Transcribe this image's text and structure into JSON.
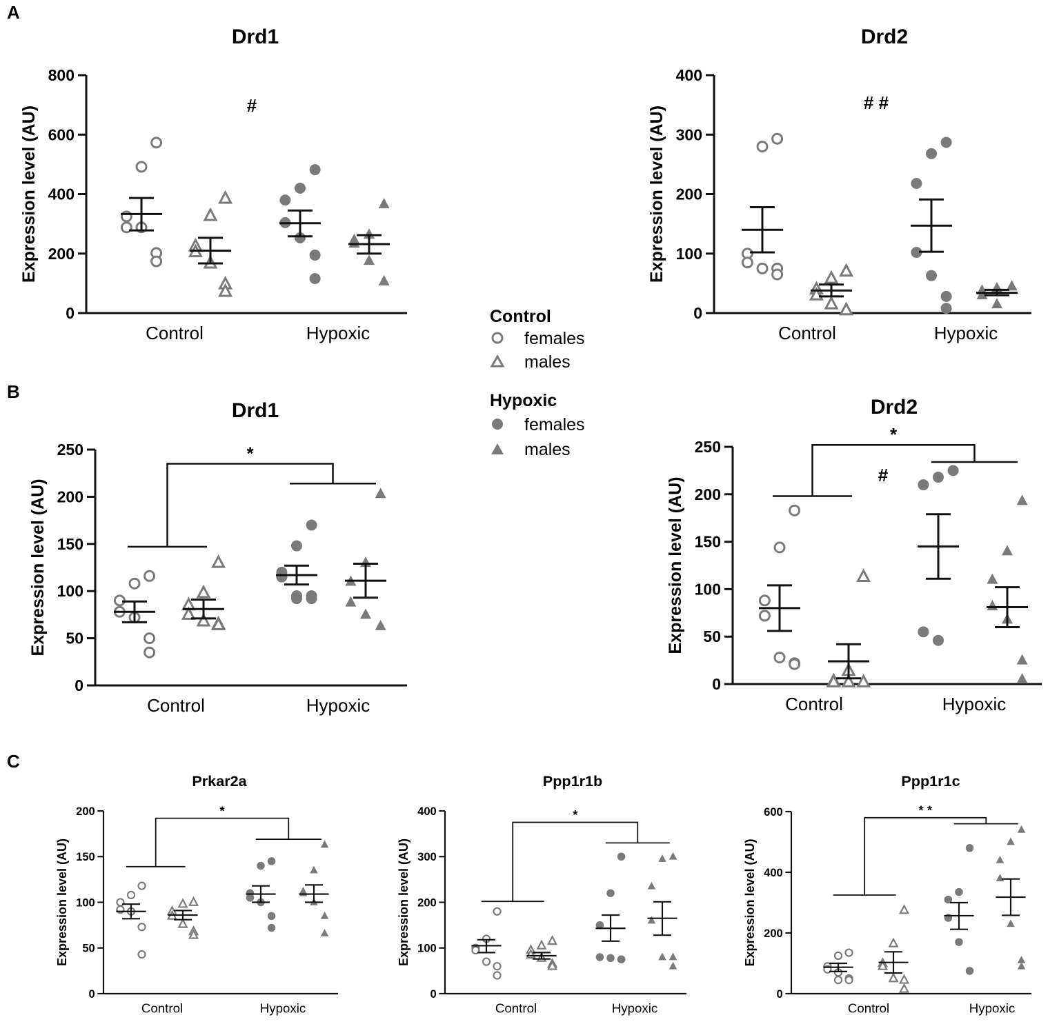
{
  "panel_labels": [
    "A",
    "B",
    "C"
  ],
  "legend": {
    "control_title": "Control",
    "hypoxic_title": "Hypoxic",
    "females": "females",
    "males": "males"
  },
  "colors": {
    "marker": "#7a7a7a",
    "mean": "#111111",
    "axis": "#111111"
  },
  "chart_data": [
    {
      "id": "A-Drd1",
      "type": "scatter",
      "title": "Drd1",
      "ylabel": "Expression level (AU)",
      "ylim": [
        0,
        800
      ],
      "yticks": [
        0,
        200,
        400,
        600,
        800
      ],
      "categories": [
        "Control",
        "Hypoxic"
      ],
      "annotation": "#",
      "series": [
        {
          "name": "Control females",
          "values": [
            573,
            492,
            325,
            288,
            288,
            202,
            174
          ],
          "mean": 333,
          "sem": [
            387,
            278
          ]
        },
        {
          "name": "Control males",
          "values": [
            385,
            327,
            225,
            205,
            167,
            97,
            72
          ],
          "mean": 210,
          "sem": [
            253,
            167
          ]
        },
        {
          "name": "Hypoxic females",
          "values": [
            482,
            420,
            380,
            304,
            253,
            195,
            116
          ],
          "mean": 302,
          "sem": [
            345,
            258
          ]
        },
        {
          "name": "Hypoxic males",
          "values": [
            366,
            264,
            246,
            234,
            176,
            107
          ],
          "mean": 232,
          "sem": [
            262,
            200
          ]
        }
      ]
    },
    {
      "id": "A-Drd2",
      "type": "scatter",
      "title": "Drd2",
      "ylabel": "Expression level (AU)",
      "ylim": [
        0,
        400
      ],
      "yticks": [
        0,
        100,
        200,
        300,
        400
      ],
      "categories": [
        "Control",
        "Hypoxic"
      ],
      "annotation": "# #",
      "series": [
        {
          "name": "Control females",
          "values": [
            293,
            280,
            100,
            85,
            75,
            75,
            65
          ],
          "mean": 140,
          "sem": [
            178,
            102
          ]
        },
        {
          "name": "Control males",
          "values": [
            70,
            58,
            40,
            30,
            15,
            5,
            5
          ],
          "mean": 38,
          "sem": [
            48,
            28
          ]
        },
        {
          "name": "Hypoxic females",
          "values": [
            287,
            268,
            218,
            102,
            63,
            28,
            8
          ],
          "mean": 147,
          "sem": [
            191,
            103
          ]
        },
        {
          "name": "Hypoxic males",
          "values": [
            45,
            42,
            38,
            30,
            15
          ],
          "mean": 34,
          "sem": [
            39,
            30
          ]
        }
      ]
    },
    {
      "id": "B-Drd1",
      "type": "scatter",
      "title": "Drd1",
      "ylabel": "Expression level (AU)",
      "ylim": [
        0,
        250
      ],
      "yticks": [
        0,
        50,
        100,
        150,
        200,
        250
      ],
      "categories": [
        "Control",
        "Hypoxic"
      ],
      "bracket": {
        "label": "*",
        "left_level": 147,
        "top_level": 235,
        "right_level": 214
      },
      "series": [
        {
          "name": "Control females",
          "values": [
            116,
            108,
            90,
            78,
            72,
            50,
            35
          ],
          "mean": 78,
          "sem": [
            89,
            67
          ]
        },
        {
          "name": "Control males",
          "values": [
            130,
            98,
            85,
            75,
            68,
            65,
            64
          ],
          "mean": 81,
          "sem": [
            91,
            71
          ]
        },
        {
          "name": "Hypoxic females",
          "values": [
            170,
            148,
            120,
            115,
            95,
            95,
            92,
            92
          ],
          "mean": 117,
          "sem": [
            127,
            107
          ]
        },
        {
          "name": "Hypoxic males",
          "values": [
            203,
            130,
            110,
            88,
            75,
            63
          ],
          "mean": 111,
          "sem": [
            129,
            93
          ]
        }
      ]
    },
    {
      "id": "B-Drd2",
      "type": "scatter",
      "title": "Drd2",
      "ylabel": "Expression level (AU)",
      "ylim": [
        0,
        250
      ],
      "yticks": [
        0,
        50,
        100,
        150,
        200,
        250
      ],
      "categories": [
        "Control",
        "Hypoxic"
      ],
      "annotation": "#",
      "bracket": {
        "label": "*",
        "left_level": 198,
        "top_level": 252,
        "right_level": 234
      },
      "series": [
        {
          "name": "Control females",
          "values": [
            183,
            144,
            88,
            72,
            28,
            22,
            21
          ],
          "mean": 80,
          "sem": [
            104,
            56
          ]
        },
        {
          "name": "Control males",
          "values": [
            113,
            14,
            3,
            2,
            2,
            2
          ],
          "mean": 24,
          "sem": [
            42,
            6
          ]
        },
        {
          "name": "Hypoxic females",
          "values": [
            225,
            218,
            210,
            55,
            46
          ],
          "mean": 145,
          "sem": [
            179,
            111
          ]
        },
        {
          "name": "Hypoxic males",
          "values": [
            193,
            140,
            110,
            82,
            68,
            25,
            5
          ],
          "mean": 81,
          "sem": [
            102,
            60
          ]
        }
      ]
    },
    {
      "id": "C-Prkar2a",
      "type": "scatter",
      "title": "Prkar2a",
      "ylabel": "Expression level (AU)",
      "ylim": [
        0,
        200
      ],
      "yticks": [
        0,
        50,
        100,
        150,
        200
      ],
      "categories": [
        "Control",
        "Hypoxic"
      ],
      "bracket": {
        "label": "*",
        "left_level": 139,
        "top_level": 192,
        "right_level": 169
      },
      "series": [
        {
          "name": "Control females",
          "values": [
            118,
            108,
            100,
            92,
            90,
            73,
            43
          ],
          "mean": 90,
          "sem": [
            98,
            82
          ]
        },
        {
          "name": "Control males",
          "values": [
            100,
            98,
            90,
            85,
            76,
            68,
            64
          ],
          "mean": 86,
          "sem": [
            91,
            81
          ]
        },
        {
          "name": "Hypoxic females",
          "values": [
            145,
            140,
            110,
            105,
            100,
            85,
            72
          ],
          "mean": 109,
          "sem": [
            118,
            100
          ]
        },
        {
          "name": "Hypoxic males",
          "values": [
            163,
            135,
            112,
            110,
            100,
            85,
            66
          ],
          "mean": 109,
          "sem": [
            119,
            100
          ]
        }
      ]
    },
    {
      "id": "C-Ppp1r1b",
      "type": "scatter",
      "title": "Ppp1r1b",
      "ylabel": "Expression level (AU)",
      "ylim": [
        0,
        400
      ],
      "yticks": [
        0,
        100,
        200,
        300,
        400
      ],
      "categories": [
        "Control",
        "Hypoxic"
      ],
      "bracket": {
        "label": "*",
        "left_level": 202,
        "top_level": 375,
        "right_level": 330
      },
      "series": [
        {
          "name": "Control females",
          "values": [
            180,
            120,
            100,
            95,
            70,
            60,
            40
          ],
          "mean": 105,
          "sem": [
            118,
            90
          ]
        },
        {
          "name": "Control males",
          "values": [
            115,
            105,
            95,
            85,
            78,
            65,
            60
          ],
          "mean": 83,
          "sem": [
            90,
            76
          ]
        },
        {
          "name": "Hypoxic females",
          "values": [
            300,
            220,
            150,
            80,
            78,
            75,
            75
          ],
          "mean": 143,
          "sem": [
            172,
            115
          ]
        },
        {
          "name": "Hypoxic males",
          "values": [
            300,
            295,
            235,
            160,
            80,
            80,
            60
          ],
          "mean": 165,
          "sem": [
            201,
            128
          ]
        }
      ]
    },
    {
      "id": "C-Ppp1r1c",
      "type": "scatter",
      "title": "Ppp1r1c",
      "ylabel": "Expression level (AU)",
      "ylim": [
        0,
        600
      ],
      "yticks": [
        0,
        200,
        400,
        600
      ],
      "categories": [
        "Control",
        "Hypoxic"
      ],
      "bracket": {
        "label": "* *",
        "left_level": 325,
        "top_level": 580,
        "right_level": 560
      },
      "series": [
        {
          "name": "Control females",
          "values": [
            135,
            125,
            90,
            80,
            70,
            50,
            45,
            45
          ],
          "mean": 87,
          "sem": [
            100,
            73
          ]
        },
        {
          "name": "Control males",
          "values": [
            275,
            165,
            100,
            90,
            50,
            45,
            15
          ],
          "mean": 103,
          "sem": [
            138,
            68
          ]
        },
        {
          "name": "Hypoxic females",
          "values": [
            480,
            335,
            310,
            250,
            170,
            75
          ],
          "mean": 257,
          "sem": [
            300,
            212
          ]
        },
        {
          "name": "Hypoxic males",
          "values": [
            540,
            500,
            440,
            380,
            230,
            110,
            90
          ],
          "mean": 318,
          "sem": [
            378,
            258
          ]
        }
      ]
    }
  ]
}
